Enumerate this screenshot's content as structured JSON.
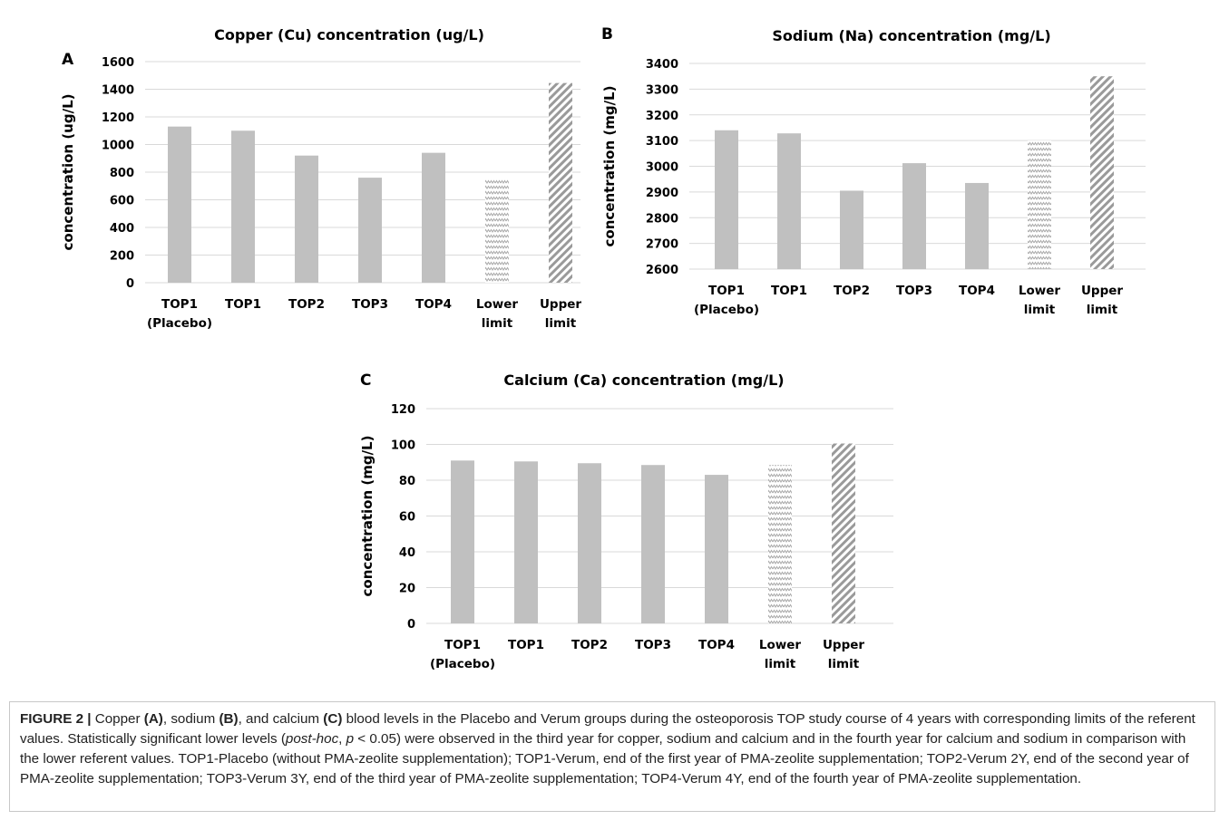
{
  "colors": {
    "bar": "#c0c0c0",
    "lower_pattern": "#aaaaaa",
    "upper_pattern": "#9a9a9a",
    "grid": "#d9d9d9"
  },
  "chart_data": [
    {
      "id": "A",
      "panel_label": "A",
      "type": "bar",
      "title": "Copper (Cu) concentration (ug/L)",
      "ylabel": "concentration (ug/L)",
      "ylim": [
        0,
        1600
      ],
      "yticks": [
        0,
        200,
        400,
        600,
        800,
        1000,
        1200,
        1400,
        1600
      ],
      "categories": [
        [
          "TOP1",
          "(Placebo)"
        ],
        [
          "TOP1"
        ],
        [
          "TOP2"
        ],
        [
          "TOP3"
        ],
        [
          "TOP4"
        ],
        [
          "Lower",
          "limit"
        ],
        [
          "Upper",
          "limit"
        ]
      ],
      "values": [
        1130,
        1100,
        920,
        760,
        940,
        745,
        1445
      ],
      "fills": [
        "solid",
        "solid",
        "solid",
        "solid",
        "solid",
        "zigzag",
        "diagonal"
      ],
      "grid": true,
      "legend": "none"
    },
    {
      "id": "B",
      "panel_label": "B",
      "type": "bar",
      "title": "Sodium (Na) concentration (mg/L)",
      "ylabel": "concentration (mg/L)",
      "ylim": [
        2600,
        3400
      ],
      "yticks": [
        2600,
        2700,
        2800,
        2900,
        3000,
        3100,
        3200,
        3300,
        3400
      ],
      "categories": [
        [
          "TOP1",
          "(Placebo)"
        ],
        [
          "TOP1"
        ],
        [
          "TOP2"
        ],
        [
          "TOP3"
        ],
        [
          "TOP4"
        ],
        [
          "Lower",
          "limit"
        ],
        [
          "Upper",
          "limit"
        ]
      ],
      "values": [
        3140,
        3128,
        2905,
        3012,
        2935,
        3100,
        3350
      ],
      "fills": [
        "solid",
        "solid",
        "solid",
        "solid",
        "solid",
        "zigzag",
        "diagonal"
      ],
      "grid": true,
      "legend": "none"
    },
    {
      "id": "C",
      "panel_label": "C",
      "type": "bar",
      "title": "Calcium (Ca) concentration (mg/L)",
      "ylabel": "concentration (mg/L)",
      "ylim": [
        0,
        120
      ],
      "yticks": [
        0,
        20,
        40,
        60,
        80,
        100,
        120
      ],
      "categories": [
        [
          "TOP1",
          "(Placebo)"
        ],
        [
          "TOP1"
        ],
        [
          "TOP2"
        ],
        [
          "TOP3"
        ],
        [
          "TOP4"
        ],
        [
          "Lower",
          "limit"
        ],
        [
          "Upper",
          "limit"
        ]
      ],
      "values": [
        91,
        90.5,
        89.5,
        88.5,
        83,
        88.5,
        100.5
      ],
      "fills": [
        "solid",
        "solid",
        "solid",
        "solid",
        "solid",
        "zigzag",
        "diagonal"
      ],
      "grid": true,
      "legend": "none"
    }
  ],
  "caption": {
    "figure_label": "FIGURE 2 |",
    "p1": " Copper ",
    "a": "(A)",
    "p2": ", sodium ",
    "b": "(B)",
    "p3": ", and calcium ",
    "c": "(C)",
    "p4": " blood levels in the Placebo and Verum groups during the osteoporosis TOP study course of 4 years with corresponding limits of the referent values. Statistically significant lower levels (",
    "posthoc": "post-hoc",
    "p5": ", ",
    "pvar": "p",
    "p6": " < 0.05) were observed in the third year for copper, sodium and calcium and in the fourth year for calcium and sodium in comparison with the lower referent values. TOP1-Placebo (without PMA-zeolite supplementation); TOP1-Verum, end of the first year of PMA-zeolite supplementation; TOP2-Verum 2Y, end of the second year of PMA-zeolite supplementation; TOP3-Verum 3Y, end of the third year of PMA-zeolite supplementation; TOP4-Verum 4Y, end of the fourth year of PMA-zeolite supplementation."
  }
}
